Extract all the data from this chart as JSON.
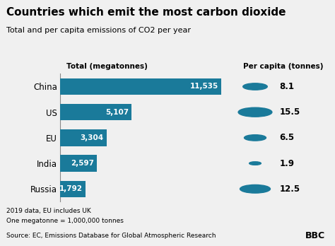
{
  "title": "Countries which emit the most carbon dioxide",
  "subtitle": "Total and per capita emissions of CO2 per year",
  "countries": [
    "China",
    "US",
    "EU",
    "India",
    "Russia"
  ],
  "total_values": [
    11535,
    5107,
    3304,
    2597,
    1792
  ],
  "per_capita_values": [
    8.1,
    15.5,
    6.5,
    1.9,
    12.5
  ],
  "bar_color": "#1a7a9a",
  "bubble_color": "#1a7a9a",
  "bg_color": "#f0f0f0",
  "text_color": "#000000",
  "bar_label_color": "#ffffff",
  "left_header": "Total (megatonnes)",
  "right_header": "Per capita (tonnes)",
  "footer_note1": "2019 data, EU includes UK",
  "footer_note2": "One megatonne = 1,000,000 tonnes",
  "source_text": "Source: EC, Emissions Database for Global Atmospheric Research",
  "bbc_text": "BBC",
  "max_total": 12000,
  "bubble_scale": 0.18
}
